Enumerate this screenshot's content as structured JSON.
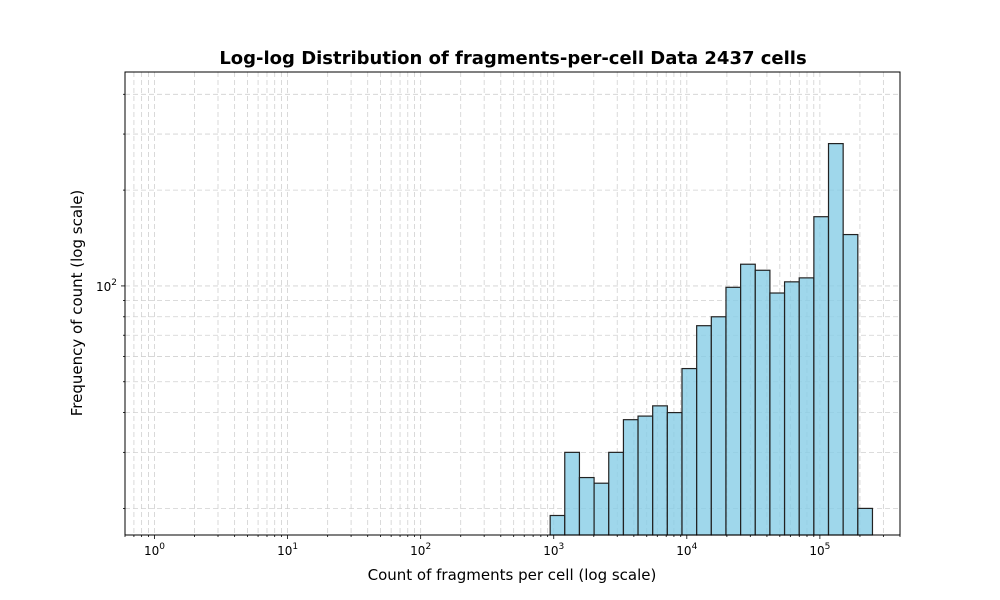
{
  "chart_data": {
    "type": "bar",
    "title": "Log-log Distribution of fragments-per-cell Data 2437 cells",
    "xlabel": "Count of fragments per cell (log scale)",
    "ylabel": "Frequency of count (log scale)",
    "xscale": "log",
    "yscale": "log",
    "xlim": [
      0.6,
      400000
    ],
    "ylim": [
      16.5,
      470
    ],
    "grid": true,
    "x_tick_labels": [
      {
        "base": "10",
        "exp": "0",
        "value": 1
      },
      {
        "base": "10",
        "exp": "1",
        "value": 10
      },
      {
        "base": "10",
        "exp": "2",
        "value": 100
      },
      {
        "base": "10",
        "exp": "3",
        "value": 1000
      },
      {
        "base": "10",
        "exp": "4",
        "value": 10000
      },
      {
        "base": "10",
        "exp": "5",
        "value": 100000
      }
    ],
    "y_tick_labels": [
      {
        "base": "10",
        "exp": "2",
        "value": 100
      }
    ],
    "bin_edges": [
      940,
      1210,
      1560,
      2010,
      2590,
      3340,
      4300,
      5540,
      7140,
      9200,
      11860,
      15280,
      19690,
      25370,
      32690,
      42120,
      54270,
      69930,
      90110,
      116100,
      149600,
      192800,
      248400
    ],
    "values": [
      19,
      30,
      25,
      24,
      30,
      38,
      39,
      42,
      40,
      55,
      75,
      80,
      99,
      117,
      112,
      95,
      103,
      106,
      165,
      280,
      145,
      20
    ],
    "colors": {
      "bar_fill": "#87cde6",
      "bar_edge": "#222222",
      "grid": "#d0d0d0"
    }
  }
}
